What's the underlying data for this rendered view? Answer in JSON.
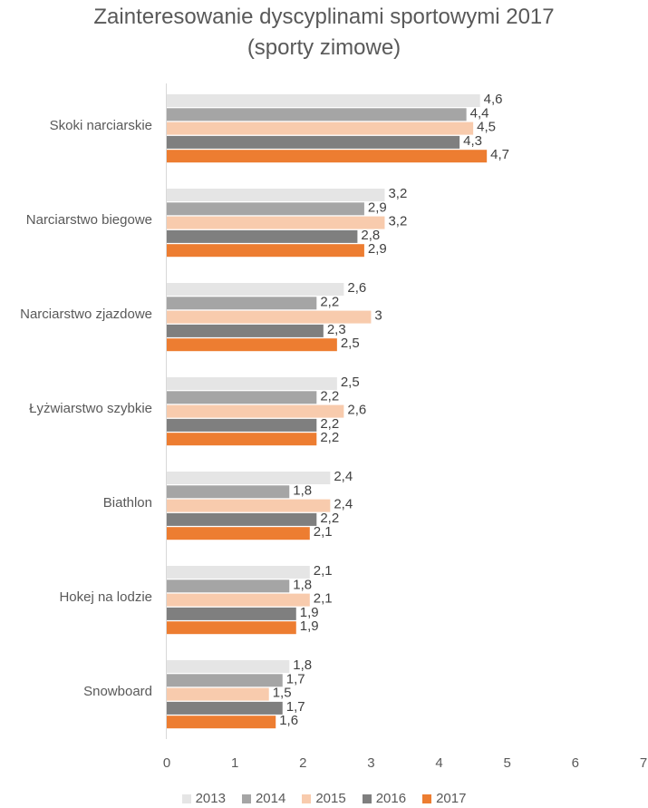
{
  "chart_data": {
    "type": "bar",
    "orientation": "horizontal",
    "title_line1": "Zainteresowanie dyscyplinami sportowymi 2017",
    "title_line2": "(sporty zimowe)",
    "categories": [
      "Skoki narciarskie",
      "Narciarstwo biegowe",
      "Narciarstwo zjazdowe",
      "Łyżwiarstwo szybkie",
      "Biathlon",
      "Hokej na lodzie",
      "Snowboard"
    ],
    "series": [
      {
        "name": "2013",
        "color": "#e5e5e5",
        "values": [
          4.6,
          3.2,
          2.6,
          2.5,
          2.4,
          2.1,
          1.8
        ],
        "labels": [
          "4,6",
          "3,2",
          "2,6",
          "2,5",
          "2,4",
          "2,1",
          "1,8"
        ]
      },
      {
        "name": "2014",
        "color": "#a5a5a5",
        "values": [
          4.4,
          2.9,
          2.2,
          2.2,
          1.8,
          1.8,
          1.7
        ],
        "labels": [
          "4,4",
          "2,9",
          "2,2",
          "2,2",
          "1,8",
          "1,8",
          "1,7"
        ]
      },
      {
        "name": "2015",
        "color": "#f8cbad",
        "values": [
          4.5,
          3.2,
          3,
          2.6,
          2.4,
          2.1,
          1.5
        ],
        "labels": [
          "4,5",
          "3,2",
          "3",
          "2,6",
          "2,4",
          "2,1",
          "1,5"
        ]
      },
      {
        "name": "2016",
        "color": "#7f7f7f",
        "values": [
          4.3,
          2.8,
          2.3,
          2.2,
          2.2,
          1.9,
          1.7
        ],
        "labels": [
          "4,3",
          "2,8",
          "2,3",
          "2,2",
          "2,2",
          "1,9",
          "1,7"
        ]
      },
      {
        "name": "2017",
        "color": "#ed7d31",
        "values": [
          4.7,
          2.9,
          2.5,
          2.2,
          2.1,
          1.9,
          1.6
        ],
        "labels": [
          "4,7",
          "2,9",
          "2,5",
          "2,2",
          "2,1",
          "1,9",
          "1,6"
        ]
      }
    ],
    "xlim": [
      0,
      7
    ],
    "xticks": [
      "0",
      "1",
      "2",
      "3",
      "4",
      "5",
      "6",
      "7"
    ],
    "grid": false,
    "legend_position": "bottom"
  }
}
